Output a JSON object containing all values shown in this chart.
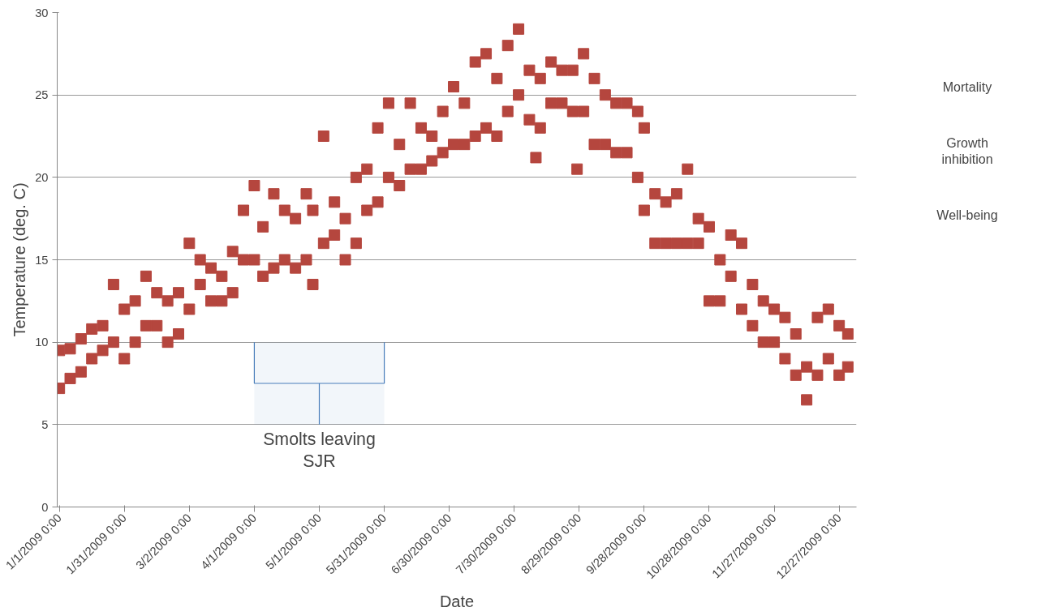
{
  "chart_data": {
    "type": "scatter",
    "xlabel": "Date",
    "ylabel": "Temperature (deg. C)",
    "xlim": [
      "2008-12-31",
      "2010-01-04"
    ],
    "ylim": [
      0,
      30
    ],
    "yticks": [
      0,
      5,
      10,
      15,
      20,
      25,
      30
    ],
    "xticks": [
      {
        "value": "2009-01-01",
        "label": "1/1/2009 0:00"
      },
      {
        "value": "2009-01-31",
        "label": "1/31/2009 0:00"
      },
      {
        "value": "2009-03-02",
        "label": "3/2/2009 0:00"
      },
      {
        "value": "2009-04-01",
        "label": "4/1/2009 0:00"
      },
      {
        "value": "2009-05-01",
        "label": "5/1/2009 0:00"
      },
      {
        "value": "2009-05-31",
        "label": "5/31/2009 0:00"
      },
      {
        "value": "2009-06-30",
        "label": "6/30/2009 0:00"
      },
      {
        "value": "2009-07-30",
        "label": "7/30/2009 0:00"
      },
      {
        "value": "2009-08-29",
        "label": "8/29/2009 0:00"
      },
      {
        "value": "2009-09-28",
        "label": "9/28/2009 0:00"
      },
      {
        "value": "2009-10-28",
        "label": "10/28/2009 0:00"
      },
      {
        "value": "2009-11-27",
        "label": "11/27/2009 0:00"
      },
      {
        "value": "2009-12-27",
        "label": "12/27/2009 0:00"
      }
    ],
    "grid": "y",
    "marker": "square",
    "series": [
      {
        "color": "#b5463e",
        "x": [
          "2009-01-01",
          "2009-01-01",
          "2009-01-06",
          "2009-01-06",
          "2009-01-11",
          "2009-01-11",
          "2009-01-16",
          "2009-01-16",
          "2009-01-21",
          "2009-01-21",
          "2009-01-26",
          "2009-01-26",
          "2009-01-31",
          "2009-01-31",
          "2009-02-05",
          "2009-02-05",
          "2009-02-10",
          "2009-02-10",
          "2009-02-15",
          "2009-02-15",
          "2009-02-20",
          "2009-02-20",
          "2009-02-25",
          "2009-02-25",
          "2009-03-02",
          "2009-03-02",
          "2009-03-07",
          "2009-03-07",
          "2009-03-12",
          "2009-03-12",
          "2009-03-17",
          "2009-03-17",
          "2009-03-22",
          "2009-03-22",
          "2009-03-27",
          "2009-03-27",
          "2009-04-01",
          "2009-04-01",
          "2009-04-05",
          "2009-04-05",
          "2009-04-10",
          "2009-04-10",
          "2009-04-15",
          "2009-04-15",
          "2009-04-20",
          "2009-04-20",
          "2009-04-25",
          "2009-04-25",
          "2009-04-28",
          "2009-04-28",
          "2009-05-03",
          "2009-05-03",
          "2009-05-08",
          "2009-05-08",
          "2009-05-13",
          "2009-05-13",
          "2009-05-18",
          "2009-05-18",
          "2009-05-23",
          "2009-05-23",
          "2009-05-28",
          "2009-05-28",
          "2009-06-02",
          "2009-06-02",
          "2009-06-07",
          "2009-06-07",
          "2009-06-12",
          "2009-06-12",
          "2009-06-17",
          "2009-06-17",
          "2009-06-22",
          "2009-06-22",
          "2009-06-27",
          "2009-06-27",
          "2009-07-02",
          "2009-07-02",
          "2009-07-07",
          "2009-07-07",
          "2009-07-12",
          "2009-07-12",
          "2009-07-17",
          "2009-07-17",
          "2009-07-22",
          "2009-07-22",
          "2009-07-27",
          "2009-07-27",
          "2009-08-01",
          "2009-08-01",
          "2009-08-06",
          "2009-08-06",
          "2009-08-09",
          "2009-08-11",
          "2009-08-11",
          "2009-08-16",
          "2009-08-16",
          "2009-08-21",
          "2009-08-21",
          "2009-08-26",
          "2009-08-26",
          "2009-08-28",
          "2009-08-31",
          "2009-08-31",
          "2009-09-05",
          "2009-09-05",
          "2009-09-10",
          "2009-09-10",
          "2009-09-15",
          "2009-09-15",
          "2009-09-20",
          "2009-09-20",
          "2009-09-25",
          "2009-09-25",
          "2009-09-28",
          "2009-09-28",
          "2009-10-03",
          "2009-10-03",
          "2009-10-08",
          "2009-10-08",
          "2009-10-13",
          "2009-10-13",
          "2009-10-18",
          "2009-10-18",
          "2009-10-23",
          "2009-10-23",
          "2009-10-28",
          "2009-10-28",
          "2009-11-02",
          "2009-11-02",
          "2009-11-07",
          "2009-11-07",
          "2009-11-12",
          "2009-11-12",
          "2009-11-17",
          "2009-11-17",
          "2009-11-22",
          "2009-11-22",
          "2009-11-27",
          "2009-11-27",
          "2009-12-02",
          "2009-12-02",
          "2009-12-07",
          "2009-12-07",
          "2009-12-12",
          "2009-12-12",
          "2009-12-17",
          "2009-12-17",
          "2009-12-22",
          "2009-12-22",
          "2009-12-27",
          "2009-12-27",
          "2009-12-31",
          "2009-12-31"
        ],
        "values": [
          7.2,
          9.5,
          7.8,
          9.6,
          8.2,
          10.2,
          9,
          10.8,
          9.5,
          11,
          10,
          13.5,
          9,
          12,
          10,
          12.5,
          11,
          14,
          11,
          13,
          10,
          12.5,
          10.5,
          13,
          12,
          16,
          13.5,
          15,
          12.5,
          14.5,
          12.5,
          14,
          13,
          15.5,
          15,
          18,
          15,
          19.5,
          14,
          17,
          14.5,
          19,
          15,
          18,
          14.5,
          17.5,
          15,
          19,
          13.5,
          18,
          16,
          22.5,
          16.5,
          18.5,
          15,
          17.5,
          16,
          20,
          18,
          20.5,
          18.5,
          23,
          20,
          24.5,
          19.5,
          22,
          20.5,
          24.5,
          20.5,
          23,
          21,
          22.5,
          21.5,
          24,
          22,
          25.5,
          22,
          24.5,
          22.5,
          27,
          23,
          27.5,
          22.5,
          26,
          24,
          28,
          25,
          29,
          23.5,
          26.5,
          21.2,
          23,
          26,
          24.5,
          27,
          24.5,
          26.5,
          24,
          26.5,
          20.5,
          24,
          27.5,
          22,
          26,
          22,
          25,
          21.5,
          24.5,
          21.5,
          24.5,
          20,
          24,
          18,
          23,
          16,
          19,
          16,
          18.5,
          16,
          19,
          16,
          20.5,
          16,
          17.5,
          12.5,
          17,
          12.5,
          15,
          14,
          16.5,
          12,
          16,
          11,
          13.5,
          10,
          12.5,
          10,
          12,
          9,
          11.5,
          8,
          10.5,
          6.5,
          8.5,
          8,
          11.5,
          9,
          12,
          8,
          11,
          8.5,
          10.5
        ]
      }
    ],
    "bands": [
      {
        "axis": "x",
        "from": "2009-04-01",
        "to": "2009-05-31",
        "color": "#4a7ebb"
      }
    ],
    "annotations": [
      "Smolts leaving SJR",
      "Mortality",
      "Growth inhibition",
      "Well-being"
    ]
  }
}
